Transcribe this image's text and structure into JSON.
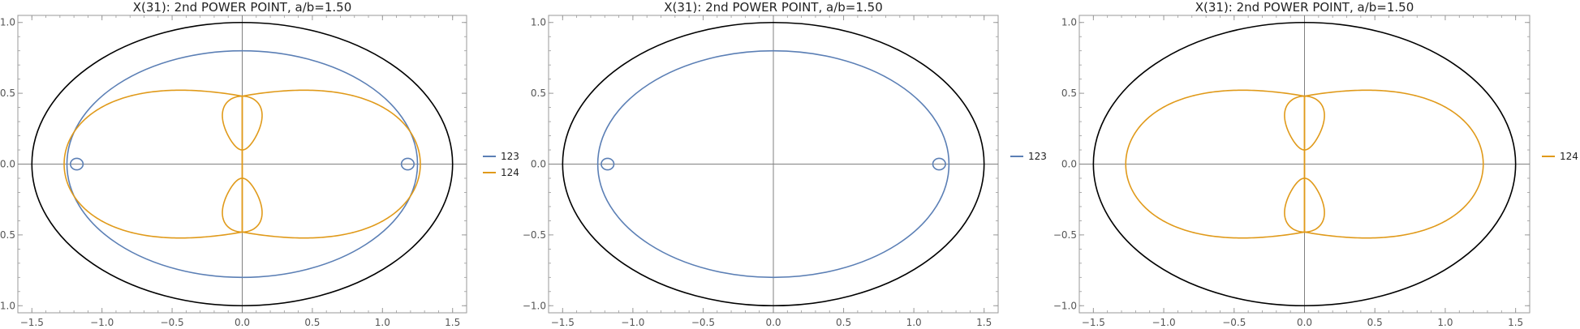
{
  "colors": {
    "series_123": "#5b7fb5",
    "series_124": "#e09a1a",
    "boundary": "#000000",
    "axes": "#808080",
    "frame": "#9a9a9a"
  },
  "chart_data": [
    {
      "type": "line",
      "title": "X(31): 2nd POWER POINT, a/b=1.50",
      "xlim": [
        -1.6,
        1.6
      ],
      "ylim": [
        -1.05,
        1.05
      ],
      "xticks": [
        -1.5,
        -1.0,
        -0.5,
        0.0,
        0.5,
        1.0,
        1.5
      ],
      "xtick_labels": [
        "−1.5",
        "−1.0",
        "−0.5",
        "0.0",
        "0.5",
        "1.0",
        "1.5"
      ],
      "yticks": [
        -1.0,
        -0.5,
        0.0,
        0.5,
        1.0
      ],
      "ytick_labels": [
        "−1.0",
        "−0.5",
        "0.0",
        "0.5",
        "1.0"
      ],
      "ellipse": {
        "a": 1.5,
        "b": 1.0
      },
      "series": [
        {
          "name": "123",
          "color_key": "series_123",
          "shape": "outer-loop-curve",
          "a": 1.25,
          "b": 0.8,
          "loops_x": 1.18,
          "loop_r": 0.045
        },
        {
          "name": "124",
          "color_key": "series_124",
          "shape": "double-lobe-curve",
          "x_extent": 1.27,
          "lobe_peak_y": 0.58,
          "inner_loop_x": 0.18,
          "inner_loop_y_range": [
            0.1,
            0.48
          ]
        }
      ],
      "legend": [
        "123",
        "124"
      ],
      "legend_position": "right"
    },
    {
      "type": "line",
      "title": "X(31): 2nd POWER POINT, a/b=1.50",
      "xlim": [
        -1.6,
        1.6
      ],
      "ylim": [
        -1.05,
        1.05
      ],
      "xticks": [
        -1.5,
        -1.0,
        -0.5,
        0.0,
        0.5,
        1.0,
        1.5
      ],
      "xtick_labels": [
        "−1.5",
        "−1.0",
        "−0.5",
        "0.0",
        "0.5",
        "1.0",
        "1.5"
      ],
      "yticks": [
        -1.0,
        -0.5,
        0.0,
        0.5,
        1.0
      ],
      "ytick_labels": [
        "−1.0",
        "−0.5",
        "0.0",
        "0.5",
        "1.0"
      ],
      "ellipse": {
        "a": 1.5,
        "b": 1.0
      },
      "series": [
        {
          "name": "123",
          "color_key": "series_123",
          "shape": "outer-loop-curve",
          "a": 1.25,
          "b": 0.8,
          "loops_x": 1.18,
          "loop_r": 0.045
        }
      ],
      "legend": [
        "123"
      ],
      "legend_position": "right"
    },
    {
      "type": "line",
      "title": "X(31): 2nd POWER POINT, a/b=1.50",
      "xlim": [
        -1.6,
        1.6
      ],
      "ylim": [
        -1.05,
        1.05
      ],
      "xticks": [
        -1.5,
        -1.0,
        -0.5,
        0.0,
        0.5,
        1.0,
        1.5
      ],
      "xtick_labels": [
        "−1.5",
        "−1.0",
        "−0.5",
        "0.0",
        "0.5",
        "1.0",
        "1.5"
      ],
      "yticks": [
        -1.0,
        -0.5,
        0.0,
        0.5,
        1.0
      ],
      "ytick_labels": [
        "−1.0",
        "−0.5",
        "0.0",
        "0.5",
        "1.0"
      ],
      "ellipse": {
        "a": 1.5,
        "b": 1.0
      },
      "series": [
        {
          "name": "124",
          "color_key": "series_124",
          "shape": "double-lobe-curve",
          "x_extent": 1.27,
          "lobe_peak_y": 0.58,
          "inner_loop_x": 0.18,
          "inner_loop_y_range": [
            0.1,
            0.48
          ]
        }
      ],
      "legend": [
        "124"
      ],
      "legend_position": "right"
    }
  ]
}
